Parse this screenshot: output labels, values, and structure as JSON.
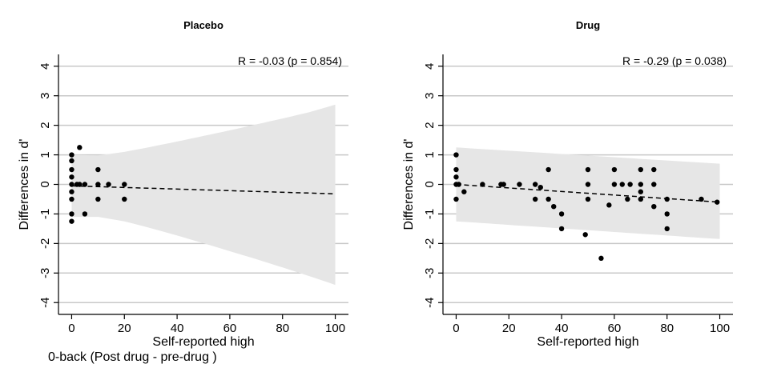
{
  "footnote": "0-back (Post drug - pre-drug )",
  "chart_data": [
    {
      "type": "scatter",
      "title": "Placebo",
      "xlabel": "Self-reported high",
      "ylabel": "Differences in d'",
      "annotation": "R = -0.03 (p = 0.854)",
      "xlim": [
        -5,
        105
      ],
      "ylim": [
        -4.4,
        4.4
      ],
      "xticks": [
        0,
        20,
        40,
        60,
        80,
        100
      ],
      "yticks": [
        4,
        3,
        2,
        1,
        0,
        -1,
        -2,
        -3,
        -4
      ],
      "grid": "horizontal",
      "points": [
        {
          "x": 0,
          "y": 1.0
        },
        {
          "x": 0,
          "y": 0.8
        },
        {
          "x": 0,
          "y": 0.5
        },
        {
          "x": 0,
          "y": 0.25
        },
        {
          "x": 0,
          "y": 0.0
        },
        {
          "x": 0,
          "y": -0.25
        },
        {
          "x": 0,
          "y": -0.5
        },
        {
          "x": 0,
          "y": -1.0
        },
        {
          "x": 0,
          "y": -1.25
        },
        {
          "x": 2,
          "y": 0.0
        },
        {
          "x": 3,
          "y": 1.25
        },
        {
          "x": 3,
          "y": 0.0
        },
        {
          "x": 5,
          "y": 0.0
        },
        {
          "x": 5,
          "y": -1.0
        },
        {
          "x": 10,
          "y": 0.5
        },
        {
          "x": 10,
          "y": 0.0
        },
        {
          "x": 10,
          "y": -0.5
        },
        {
          "x": 14,
          "y": 0.0
        },
        {
          "x": 20,
          "y": 0.0
        },
        {
          "x": 20,
          "y": -0.5
        }
      ],
      "fit_line": {
        "x": [
          0,
          100
        ],
        "y": [
          -0.05,
          -0.32
        ]
      },
      "confidence_band": {
        "x": [
          0,
          10,
          20,
          30,
          40,
          50,
          60,
          70,
          80,
          90,
          100
        ],
        "upper": [
          1.0,
          0.98,
          1.1,
          1.27,
          1.45,
          1.64,
          1.83,
          2.03,
          2.23,
          2.44,
          2.7
        ],
        "lower": [
          -1.1,
          -1.1,
          -1.25,
          -1.48,
          -1.73,
          -1.99,
          -2.26,
          -2.53,
          -2.81,
          -3.1,
          -3.4
        ]
      },
      "colors": {
        "points": "#000000",
        "band": "#e6e6e6",
        "grid": "#c8c8c8"
      }
    },
    {
      "type": "scatter",
      "title": "Drug",
      "xlabel": "Self-reported high",
      "ylabel": "Differences in d'",
      "annotation": "R = -0.29 (p = 0.038)",
      "xlim": [
        -5,
        105
      ],
      "ylim": [
        -4.4,
        4.4
      ],
      "xticks": [
        0,
        20,
        40,
        60,
        80,
        100
      ],
      "yticks": [
        4,
        3,
        2,
        1,
        0,
        -1,
        -2,
        -3,
        -4
      ],
      "grid": "horizontal",
      "points": [
        {
          "x": 0,
          "y": 1.0
        },
        {
          "x": 0,
          "y": 0.5
        },
        {
          "x": 0,
          "y": 0.25
        },
        {
          "x": 0,
          "y": 0.0
        },
        {
          "x": 0,
          "y": -0.5
        },
        {
          "x": 1,
          "y": 0.0
        },
        {
          "x": 3,
          "y": -0.25
        },
        {
          "x": 10,
          "y": 0.0
        },
        {
          "x": 17,
          "y": 0.0
        },
        {
          "x": 18,
          "y": 0.0
        },
        {
          "x": 24,
          "y": 0.0
        },
        {
          "x": 30,
          "y": 0.0
        },
        {
          "x": 30,
          "y": -0.5
        },
        {
          "x": 32,
          "y": -0.1
        },
        {
          "x": 35,
          "y": 0.5
        },
        {
          "x": 35,
          "y": -0.5
        },
        {
          "x": 37,
          "y": -0.75
        },
        {
          "x": 40,
          "y": -1.0
        },
        {
          "x": 40,
          "y": -1.5
        },
        {
          "x": 49,
          "y": -1.7
        },
        {
          "x": 50,
          "y": 0.5
        },
        {
          "x": 50,
          "y": 0.0
        },
        {
          "x": 50,
          "y": -0.5
        },
        {
          "x": 55,
          "y": -2.5
        },
        {
          "x": 58,
          "y": -0.7
        },
        {
          "x": 60,
          "y": 0.5
        },
        {
          "x": 60,
          "y": 0.0
        },
        {
          "x": 63,
          "y": 0.0
        },
        {
          "x": 65,
          "y": -0.5
        },
        {
          "x": 66,
          "y": 0.0
        },
        {
          "x": 70,
          "y": 0.5
        },
        {
          "x": 70,
          "y": 0.0
        },
        {
          "x": 70,
          "y": -0.25
        },
        {
          "x": 70,
          "y": -0.5
        },
        {
          "x": 75,
          "y": 0.5
        },
        {
          "x": 75,
          "y": 0.0
        },
        {
          "x": 75,
          "y": -0.75
        },
        {
          "x": 80,
          "y": -0.5
        },
        {
          "x": 80,
          "y": -1.0
        },
        {
          "x": 80,
          "y": -1.5
        },
        {
          "x": 93,
          "y": -0.5
        },
        {
          "x": 99,
          "y": -0.6
        }
      ],
      "fit_line": {
        "x": [
          0,
          100
        ],
        "y": [
          0.0,
          -0.6
        ]
      },
      "confidence_band": {
        "x": [
          0,
          100
        ],
        "upper": [
          1.25,
          0.7
        ],
        "lower": [
          -1.25,
          -1.85
        ]
      },
      "colors": {
        "points": "#000000",
        "band": "#e6e6e6",
        "grid": "#c8c8c8"
      }
    }
  ]
}
